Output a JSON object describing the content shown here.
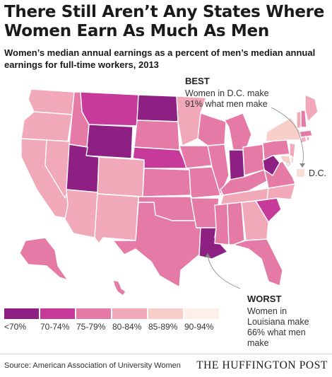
{
  "title": "There Still Aren’t Any States Where Women Earn As Much As Men",
  "subtitle": "Women’s median annual earnings as a percent of men’s median annual earnings for full-time workers, 2013",
  "callouts": {
    "best": {
      "label": "BEST",
      "text": "Women in D.C. make 91% what men make"
    },
    "worst": {
      "label": "WORST",
      "text": "Women in Louisiana make 66% what men make"
    }
  },
  "dc_label": "D.C.",
  "legend": [
    {
      "label": "<70%",
      "color": "#8e1f83"
    },
    {
      "label": "70-74%",
      "color": "#c83a9a"
    },
    {
      "label": "75-79%",
      "color": "#e57aa6"
    },
    {
      "label": "80-84%",
      "color": "#f1a8b8"
    },
    {
      "label": "85-89%",
      "color": "#f8cfc8"
    },
    {
      "label": "90-94%",
      "color": "#fdf0ea"
    }
  ],
  "colors": {
    "lt70": "#8e1f83",
    "b70": "#c83a9a",
    "b75": "#e57aa6",
    "b80": "#f1a8b8",
    "b85": "#f8cfc8",
    "b90": "#fdf0ea"
  },
  "footer": {
    "source": "Source: American Association of University Women",
    "brand": "THE HUFFINGTON POST"
  }
}
